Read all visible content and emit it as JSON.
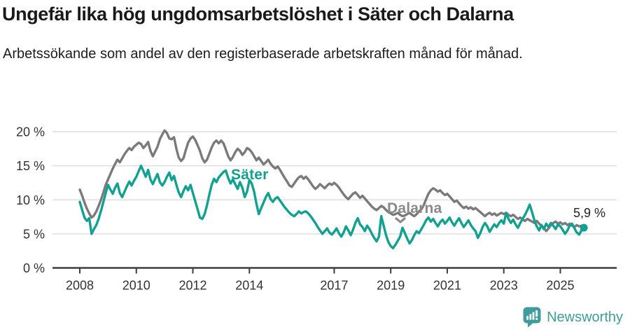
{
  "header": {
    "title": "Ungefär lika hög ungdomsarbetslöshet i Säter och Dalarna",
    "subtitle": "Arbetssökande som andel av den registerbaserade arbetskraften månad för månad."
  },
  "chart_data": {
    "type": "line",
    "unit": "%",
    "frequency": "monthly",
    "x_start": "2008-01",
    "x_end": "2025-11",
    "x_tick_years": [
      2008,
      2010,
      2012,
      2014,
      2017,
      2019,
      2021,
      2023,
      2025
    ],
    "y_ticks": [
      0,
      5,
      10,
      15,
      20
    ],
    "y_tick_suffix": " %",
    "ylim": [
      0,
      21
    ],
    "grid": "horizontal-only",
    "legend": "inline-labels",
    "series": [
      {
        "name": "Dalarna",
        "color": "#7a7a7a",
        "values": [
          11.5,
          10.6,
          9.6,
          8.7,
          8.0,
          7.4,
          7.7,
          8.3,
          9.1,
          10.0,
          11.1,
          12.2,
          13.0,
          13.8,
          14.6,
          15.3,
          15.9,
          15.5,
          16.1,
          16.7,
          17.2,
          17.6,
          17.3,
          17.8,
          18.1,
          18.4,
          18.2,
          17.6,
          18.0,
          18.5,
          17.2,
          16.4,
          17.1,
          17.8,
          18.9,
          19.6,
          20.2,
          19.8,
          19.0,
          18.9,
          19.2,
          17.5,
          16.2,
          15.7,
          16.1,
          17.3,
          18.4,
          19.0,
          19.3,
          18.8,
          18.0,
          17.2,
          16.1,
          15.5,
          15.9,
          16.8,
          17.7,
          18.4,
          18.7,
          18.3,
          18.7,
          18.3,
          17.4,
          16.4,
          15.8,
          16.3,
          17.0,
          17.5,
          17.2,
          16.6,
          17.0,
          17.6,
          17.4,
          17.0,
          16.4,
          15.8,
          16.2,
          15.7,
          15.2,
          15.5,
          15.9,
          15.3,
          14.9,
          14.6,
          14.9,
          14.4,
          13.8,
          13.2,
          12.7,
          12.1,
          11.9,
          12.4,
          12.9,
          13.3,
          13.5,
          13.1,
          13.4,
          13.0,
          12.5,
          12.0,
          11.6,
          11.9,
          12.3,
          12.0,
          11.7,
          12.1,
          12.4,
          12.2,
          12.5,
          12.2,
          11.8,
          11.3,
          10.8,
          10.4,
          10.1,
          10.5,
          10.9,
          11.1,
          10.7,
          10.3,
          10.6,
          10.2,
          9.8,
          9.4,
          9.0,
          8.7,
          8.5,
          8.8,
          9.1,
          8.9,
          8.5,
          8.2,
          8.0,
          7.8,
          7.9,
          8.1,
          7.8,
          7.6,
          7.7,
          7.9,
          8.1,
          7.8,
          7.6,
          7.9,
          8.3,
          8.6,
          9.2,
          10.1,
          10.9,
          11.4,
          11.7,
          11.5,
          11.2,
          11.4,
          11.0,
          10.7,
          10.9,
          10.5,
          10.1,
          9.7,
          9.9,
          9.5,
          9.1,
          8.8,
          9.0,
          8.7,
          8.9,
          8.6,
          8.8,
          8.5,
          8.2,
          7.9,
          7.6,
          7.9,
          8.1,
          7.8,
          8.0,
          7.7,
          7.9,
          8.1,
          7.9,
          8.1,
          7.8,
          7.6,
          7.8,
          7.5,
          7.2,
          7.4,
          7.1,
          6.9,
          7.2,
          7.0,
          6.8,
          6.6,
          6.9,
          6.5,
          6.2,
          5.9,
          5.4,
          5.8,
          6.3,
          6.6,
          6.8,
          6.5,
          6.7,
          6.4,
          6.6,
          6.3,
          6.5,
          6.2,
          6.0,
          6.3,
          6.1,
          6.2,
          6.2
        ]
      },
      {
        "name": "Säter",
        "color": "#12a191",
        "end_dot": true,
        "values": [
          9.7,
          8.5,
          7.4,
          6.9,
          7.3,
          5.0,
          5.7,
          6.3,
          7.2,
          8.4,
          9.7,
          11.0,
          12.2,
          11.5,
          10.9,
          11.8,
          12.4,
          11.0,
          10.4,
          11.2,
          12.0,
          12.7,
          12.1,
          12.8,
          13.4,
          14.2,
          15.0,
          14.2,
          13.4,
          14.4,
          13.0,
          12.3,
          13.1,
          13.8,
          12.6,
          12.1,
          12.6,
          13.4,
          14.0,
          12.9,
          13.5,
          12.2,
          11.1,
          10.4,
          11.3,
          12.0,
          11.4,
          12.2,
          11.0,
          9.8,
          8.6,
          7.4,
          7.2,
          7.9,
          9.2,
          10.8,
          12.2,
          13.1,
          12.6,
          13.3,
          13.7,
          14.1,
          14.3,
          13.2,
          12.4,
          13.0,
          12.3,
          11.6,
          12.6,
          11.8,
          10.4,
          11.2,
          12.9,
          12.4,
          11.2,
          9.4,
          7.9,
          8.8,
          9.6,
          10.4,
          11.0,
          10.1,
          9.7,
          10.2,
          10.4,
          9.9,
          9.4,
          8.9,
          8.5,
          8.1,
          7.8,
          7.6,
          7.9,
          8.3,
          8.0,
          8.2,
          8.3,
          8.0,
          7.6,
          7.1,
          6.6,
          6.0,
          5.5,
          5.0,
          5.4,
          5.8,
          5.2,
          4.9,
          5.3,
          5.8,
          5.1,
          4.6,
          5.2,
          6.1,
          5.5,
          4.8,
          5.6,
          6.6,
          7.3,
          6.4,
          6.0,
          5.4,
          6.2,
          5.7,
          5.0,
          4.4,
          3.9,
          4.6,
          7.6,
          6.2,
          4.8,
          3.8,
          3.2,
          2.9,
          3.4,
          4.0,
          4.6,
          5.9,
          5.1,
          4.3,
          3.6,
          4.1,
          4.8,
          5.4,
          5.1,
          5.7,
          6.3,
          7.0,
          7.4,
          6.8,
          7.2,
          6.6,
          6.1,
          6.7,
          7.1,
          6.5,
          6.9,
          7.4,
          6.7,
          6.2,
          6.8,
          7.3,
          6.6,
          6.0,
          6.5,
          7.0,
          6.3,
          5.8,
          5.4,
          4.4,
          5.1,
          6.0,
          6.6,
          6.1,
          5.3,
          5.9,
          6.4,
          6.0,
          6.6,
          7.0,
          6.5,
          8.1,
          7.2,
          6.6,
          7.1,
          6.4,
          5.9,
          6.6,
          7.2,
          7.8,
          8.5,
          9.3,
          8.2,
          7.0,
          6.1,
          5.5,
          6.3,
          5.7,
          6.5,
          6.0,
          6.6,
          6.2,
          5.7,
          6.4,
          6.1,
          5.6,
          5.0,
          5.5,
          6.2,
          6.5,
          5.8,
          5.2,
          4.9,
          5.5,
          5.9
        ]
      }
    ],
    "annotations": {
      "sater_label": "Säter",
      "dalarna_label": "Dalarna",
      "last_value_label": "5,9 %"
    },
    "colors": {
      "grid": "#e0e0e0",
      "axis": "#3d3d3d",
      "tick_text": "#333333"
    }
  },
  "footer": {
    "brand": "Newsworthy",
    "brand_color": "#3f9c9a"
  }
}
